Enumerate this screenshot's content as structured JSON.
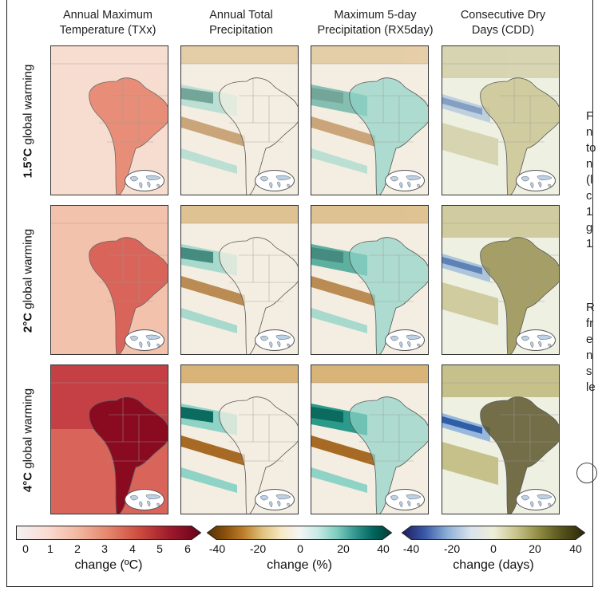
{
  "columns": [
    {
      "line1": "Annual Maximum",
      "line2": "Temperature (TXx)"
    },
    {
      "line1": "Annual Total",
      "line2": "Precipitation"
    },
    {
      "line1": "Maximum 5-day",
      "line2": "Precipitation (RX5day)"
    },
    {
      "line1": "Consecutive Dry",
      "line2": "Days (CDD)"
    }
  ],
  "rows": [
    {
      "level": "1.5°C",
      "suffix": " global warming"
    },
    {
      "level": "2°C",
      "suffix": " global warming"
    },
    {
      "level": "4°C",
      "suffix": " global warming"
    }
  ],
  "side_text_fragments": [
    "F",
    "n",
    "to",
    "n",
    "(l",
    "c",
    "1",
    "g",
    "1",
    "R",
    "fr",
    "e",
    "n",
    "s",
    "le"
  ],
  "colorbars": [
    {
      "ticks": [
        "0",
        "1",
        "2",
        "3",
        "4",
        "5",
        "6"
      ],
      "label": "change (ºC)",
      "colors": [
        "#f4f1f4",
        "#fadcd2",
        "#f2b7a1",
        "#e4856c",
        "#cc4b3f",
        "#9d1a2b",
        "#680018"
      ]
    },
    {
      "ticks": [
        "-40",
        "-20",
        "0",
        "20",
        "40"
      ],
      "label": "change (%)",
      "colors": [
        "#543005",
        "#8c510a",
        "#bf812d",
        "#dfc27d",
        "#f6e8c3",
        "#f5f5f5",
        "#c7eae5",
        "#80cdc1",
        "#35978f",
        "#01665e",
        "#003c30"
      ]
    },
    {
      "ticks": [
        "-40",
        "-20",
        "0",
        "20",
        "40"
      ],
      "label": "change (days)",
      "colors": [
        "#1c1c5c",
        "#3a59a8",
        "#8fb0d8",
        "#d9e2ec",
        "#eeeed8",
        "#c8c48a",
        "#8e8a42",
        "#55521c",
        "#2a2608"
      ]
    }
  ],
  "map_palettes": {
    "txx": [
      "#f7ddd0",
      "#f3c2ad",
      "#e88e78",
      "#d9645a",
      "#b42234",
      "#8a0a20"
    ],
    "brown_teal": [
      "#a76a24",
      "#d8b478",
      "#f4eee2",
      "#8fd3c7",
      "#2b9a8a",
      "#0b6b5e"
    ],
    "cdd": [
      "#2f5ea8",
      "#97b7dc",
      "#eef0e2",
      "#c6c08a",
      "#8c843e",
      "#4b4314"
    ]
  }
}
